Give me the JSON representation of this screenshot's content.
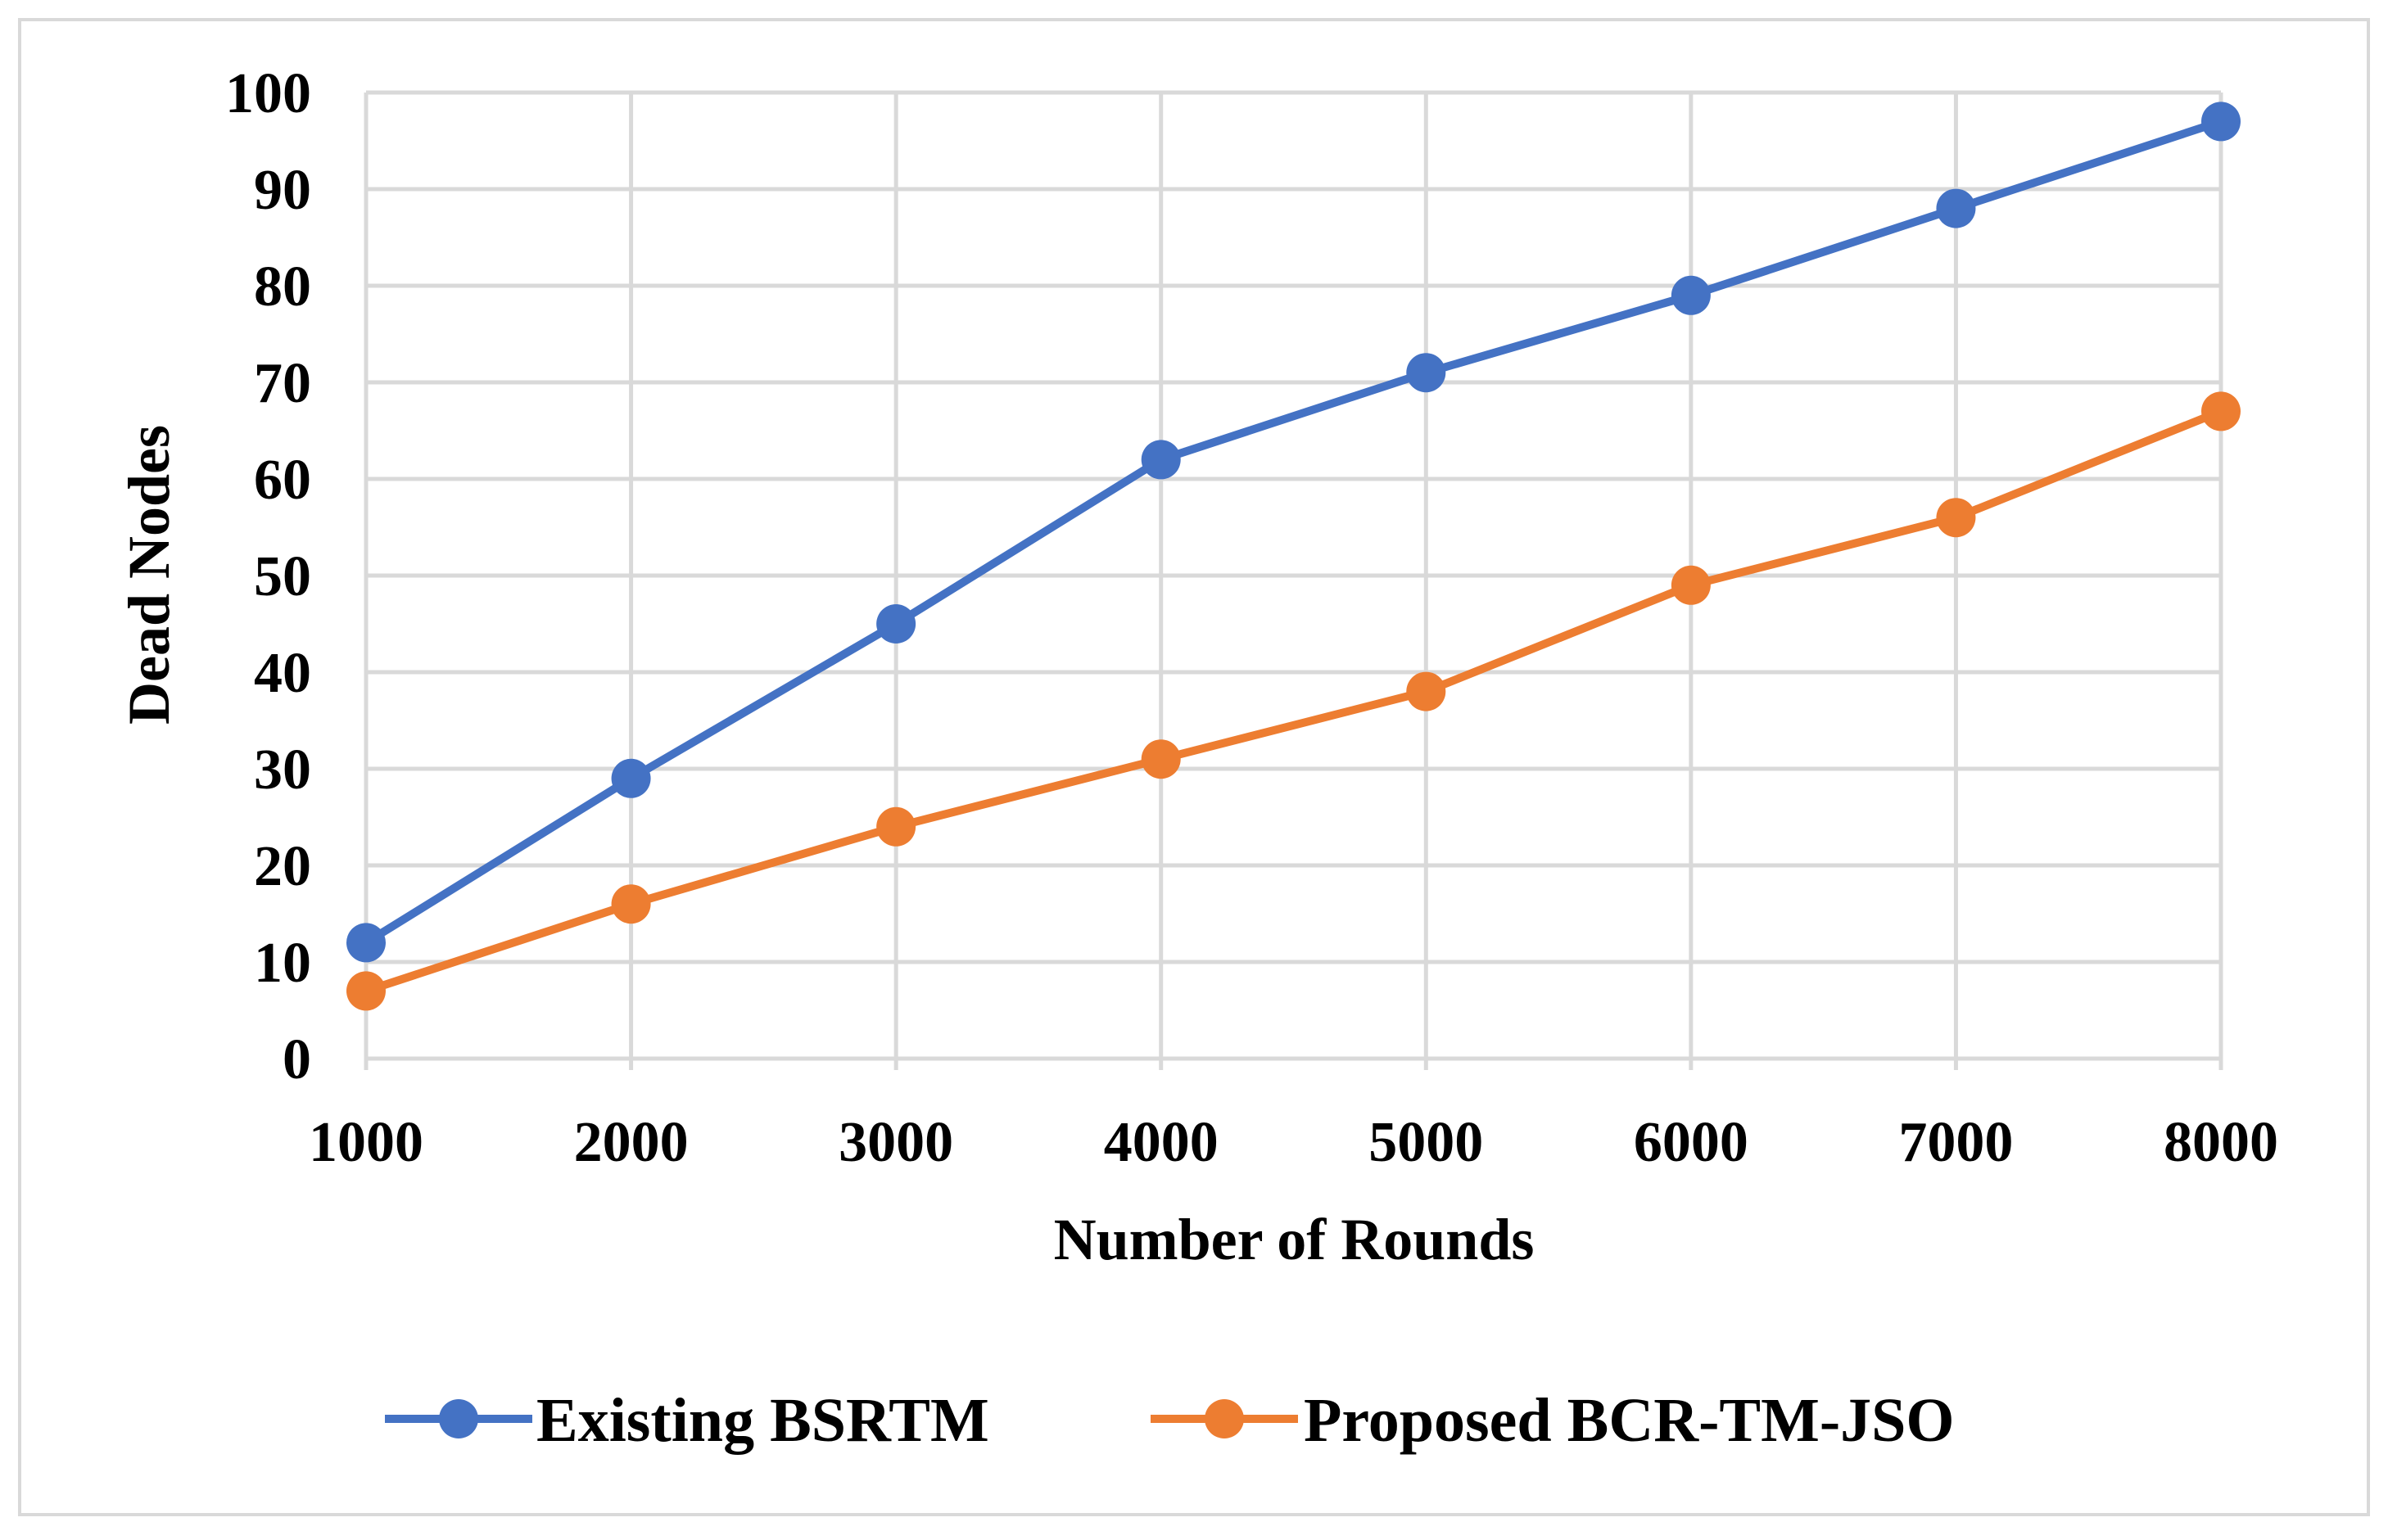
{
  "chart_data": {
    "type": "line",
    "title": "",
    "xlabel": "Number of Rounds",
    "ylabel": "Dead Nodes",
    "x": [
      1000,
      2000,
      3000,
      4000,
      5000,
      6000,
      7000,
      8000
    ],
    "x_tick_labels": [
      "1000",
      "2000",
      "3000",
      "4000",
      "5000",
      "6000",
      "7000",
      "8000"
    ],
    "y_tick_labels": [
      "0",
      "10",
      "20",
      "30",
      "40",
      "50",
      "60",
      "70",
      "80",
      "90",
      "100"
    ],
    "ylim": [
      0,
      100
    ],
    "y_step": 10,
    "grid": true,
    "legend_position": "bottom",
    "series": [
      {
        "name": "Existing BSRTM",
        "color": "#4472c4",
        "values": [
          12,
          29,
          45,
          62,
          71,
          79,
          88,
          97
        ]
      },
      {
        "name": "Proposed BCR-TM-JSO",
        "color": "#ed7d31",
        "values": [
          7,
          16,
          24,
          31,
          38,
          49,
          56,
          67
        ]
      }
    ]
  }
}
